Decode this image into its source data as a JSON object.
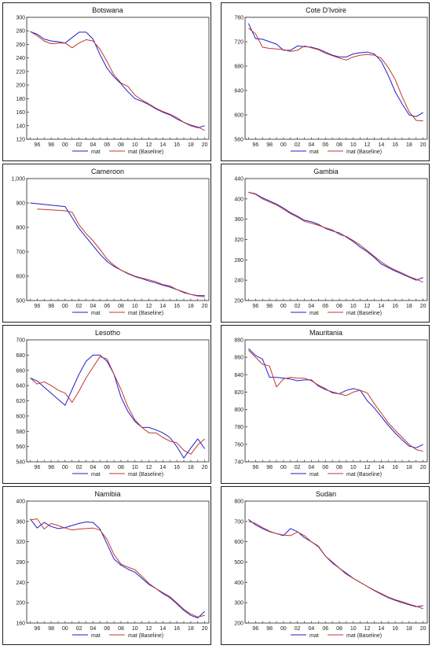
{
  "legend": {
    "series_a": "mat",
    "series_b": "mat (Baseline)"
  },
  "colors": {
    "mat": "#1f1fcc",
    "baseline": "#c0392b",
    "frame": "#222222"
  },
  "chart_data": [
    {
      "type": "line",
      "title": "Botswana",
      "x": [
        1995,
        1996,
        1997,
        1998,
        1999,
        2000,
        2001,
        2002,
        2003,
        2004,
        2005,
        2006,
        2007,
        2008,
        2009,
        2010,
        2011,
        2012,
        2013,
        2014,
        2015,
        2016,
        2017,
        2018,
        2019,
        2020
      ],
      "xticks": [
        "96",
        "98",
        "00",
        "02",
        "04",
        "06",
        "08",
        "10",
        "12",
        "14",
        "16",
        "18",
        "20"
      ],
      "ylim": [
        120,
        300
      ],
      "yticks": [
        "120",
        "140",
        "160",
        "180",
        "200",
        "220",
        "240",
        "260",
        "280",
        "300"
      ],
      "series": [
        {
          "name": "mat",
          "values": [
            279,
            275,
            268,
            265,
            264,
            262,
            270,
            278,
            278,
            268,
            245,
            225,
            212,
            202,
            190,
            180,
            176,
            171,
            165,
            160,
            156,
            150,
            145,
            140,
            137,
            140
          ]
        },
        {
          "name": "mat (Baseline)",
          "values": [
            279,
            273,
            265,
            261,
            262,
            262,
            255,
            262,
            267,
            265,
            253,
            235,
            215,
            203,
            198,
            185,
            178,
            172,
            166,
            161,
            157,
            152,
            145,
            141,
            138,
            133
          ]
        }
      ]
    },
    {
      "type": "line",
      "title": "Cote D'Ivoire",
      "x": [
        1995,
        1996,
        1997,
        1998,
        1999,
        2000,
        2001,
        2002,
        2003,
        2004,
        2005,
        2006,
        2007,
        2008,
        2009,
        2010,
        2011,
        2012,
        2013,
        2014,
        2015,
        2016,
        2017,
        2018,
        2019,
        2020
      ],
      "xticks": [
        "96",
        "98",
        "00",
        "02",
        "04",
        "06",
        "08",
        "10",
        "12",
        "14",
        "16",
        "18",
        "20"
      ],
      "ylim": [
        560,
        760
      ],
      "yticks": [
        "560",
        "600",
        "640",
        "680",
        "720",
        "760"
      ],
      "series": [
        {
          "name": "mat",
          "values": [
            750,
            725,
            724,
            720,
            716,
            706,
            706,
            713,
            712,
            711,
            708,
            703,
            698,
            695,
            695,
            700,
            702,
            703,
            700,
            688,
            665,
            638,
            618,
            600,
            597,
            604
          ]
        },
        {
          "name": "mat (Baseline)",
          "values": [
            742,
            733,
            711,
            709,
            708,
            707,
            704,
            706,
            713,
            710,
            707,
            701,
            697,
            693,
            690,
            695,
            698,
            699,
            698,
            693,
            678,
            658,
            630,
            605,
            591,
            590
          ]
        }
      ]
    },
    {
      "type": "line",
      "title": "Cameroon",
      "x": [
        1995,
        1996,
        1997,
        1998,
        1999,
        2000,
        2001,
        2002,
        2003,
        2004,
        2005,
        2006,
        2007,
        2008,
        2009,
        2010,
        2011,
        2012,
        2013,
        2014,
        2015,
        2016,
        2017,
        2018,
        2019,
        2020
      ],
      "xticks": [
        "96",
        "98",
        "00",
        "02",
        "04",
        "06",
        "08",
        "10",
        "12",
        "14",
        "16",
        "18",
        "20"
      ],
      "ylim": [
        500,
        1000
      ],
      "yticks": [
        "500",
        "600",
        "700",
        "800",
        "900",
        "1,000"
      ],
      "series": [
        {
          "name": "mat",
          "values": [
            900,
            null,
            null,
            null,
            null,
            885,
            840,
            795,
            760,
            725,
            690,
            660,
            640,
            625,
            610,
            598,
            590,
            580,
            572,
            563,
            555,
            545,
            535,
            525,
            520,
            520
          ]
        },
        {
          "name": "mat (Baseline)",
          "values": [
            null,
            875,
            null,
            null,
            null,
            868,
            862,
            810,
            775,
            745,
            710,
            670,
            645,
            625,
            612,
            600,
            592,
            585,
            577,
            565,
            560,
            545,
            532,
            525,
            518,
            515
          ]
        }
      ]
    },
    {
      "type": "line",
      "title": "Gambia",
      "x": [
        1995,
        1996,
        1997,
        1998,
        1999,
        2000,
        2001,
        2002,
        2003,
        2004,
        2005,
        2006,
        2007,
        2008,
        2009,
        2010,
        2011,
        2012,
        2013,
        2014,
        2015,
        2016,
        2017,
        2018,
        2019,
        2020
      ],
      "xticks": [
        "96",
        "98",
        "00",
        "02",
        "04",
        "06",
        "08",
        "10",
        "12",
        "14",
        "16",
        "18",
        "20"
      ],
      "ylim": [
        200,
        440
      ],
      "yticks": [
        "200",
        "240",
        "280",
        "320",
        "360",
        "400",
        "440"
      ],
      "series": [
        {
          "name": "mat",
          "values": [
            413,
            410,
            402,
            396,
            390,
            382,
            373,
            366,
            358,
            355,
            350,
            342,
            337,
            333,
            325,
            316,
            305,
            296,
            285,
            272,
            265,
            258,
            252,
            246,
            240,
            245
          ]
        },
        {
          "name": "mat (Baseline)",
          "values": [
            413,
            409,
            400,
            394,
            388,
            380,
            371,
            364,
            356,
            352,
            348,
            343,
            339,
            330,
            326,
            318,
            309,
            298,
            287,
            276,
            267,
            260,
            254,
            247,
            242,
            236
          ]
        }
      ]
    },
    {
      "type": "line",
      "title": "Lesotho",
      "x": [
        1995,
        1996,
        1997,
        1998,
        1999,
        2000,
        2001,
        2002,
        2003,
        2004,
        2005,
        2006,
        2007,
        2008,
        2009,
        2010,
        2011,
        2012,
        2013,
        2014,
        2015,
        2016,
        2017,
        2018,
        2019,
        2020
      ],
      "xticks": [
        "96",
        "98",
        "00",
        "02",
        "04",
        "06",
        "08",
        "10",
        "12",
        "14",
        "16",
        "18",
        "20"
      ],
      "ylim": [
        540,
        700
      ],
      "yticks": [
        "540",
        "560",
        "580",
        "600",
        "620",
        "640",
        "660",
        "680",
        "700"
      ],
      "series": [
        {
          "name": "mat",
          "values": [
            650,
            646,
            638,
            630,
            622,
            614,
            635,
            655,
            672,
            680,
            680,
            672,
            655,
            625,
            606,
            593,
            585,
            585,
            582,
            578,
            572,
            560,
            545,
            558,
            570,
            557
          ]
        },
        {
          "name": "mat (Baseline)",
          "values": [
            650,
            642,
            645,
            640,
            634,
            630,
            618,
            633,
            650,
            664,
            678,
            675,
            655,
            635,
            612,
            595,
            585,
            578,
            578,
            572,
            567,
            565,
            555,
            550,
            562,
            570
          ]
        }
      ]
    },
    {
      "type": "line",
      "title": "Mauritania",
      "x": [
        1995,
        1996,
        1997,
        1998,
        1999,
        2000,
        2001,
        2002,
        2003,
        2004,
        2005,
        2006,
        2007,
        2008,
        2009,
        2010,
        2011,
        2012,
        2013,
        2014,
        2015,
        2016,
        2017,
        2018,
        2019,
        2020
      ],
      "xticks": [
        "96",
        "98",
        "00",
        "02",
        "04",
        "06",
        "08",
        "10",
        "12",
        "14",
        "16",
        "18",
        "20"
      ],
      "ylim": [
        740,
        880
      ],
      "yticks": [
        "740",
        "760",
        "780",
        "800",
        "820",
        "840",
        "860",
        "880"
      ],
      "series": [
        {
          "name": "mat",
          "values": [
            870,
            862,
            858,
            837,
            837,
            836,
            835,
            833,
            834,
            834,
            827,
            823,
            820,
            818,
            822,
            824,
            822,
            810,
            802,
            792,
            782,
            773,
            765,
            758,
            756,
            760
          ]
        },
        {
          "name": "mat (Baseline)",
          "values": [
            868,
            860,
            852,
            850,
            826,
            835,
            837,
            836,
            836,
            833,
            828,
            824,
            819,
            818,
            816,
            820,
            822,
            819,
            807,
            796,
            785,
            776,
            768,
            760,
            754,
            752
          ]
        }
      ]
    },
    {
      "type": "line",
      "title": "Namibia",
      "x": [
        1995,
        1996,
        1997,
        1998,
        1999,
        2000,
        2001,
        2002,
        2003,
        2004,
        2005,
        2006,
        2007,
        2008,
        2009,
        2010,
        2011,
        2012,
        2013,
        2014,
        2015,
        2016,
        2017,
        2018,
        2019,
        2020
      ],
      "xticks": [
        "96",
        "98",
        "00",
        "02",
        "04",
        "06",
        "08",
        "10",
        "12",
        "14",
        "16",
        "18",
        "20"
      ],
      "ylim": [
        160,
        400
      ],
      "yticks": [
        "160",
        "200",
        "240",
        "280",
        "320",
        "360",
        "400"
      ],
      "series": [
        {
          "name": "mat",
          "values": [
            365,
            347,
            358,
            350,
            346,
            348,
            352,
            356,
            359,
            358,
            345,
            316,
            286,
            274,
            266,
            260,
            248,
            236,
            228,
            218,
            210,
            198,
            185,
            175,
            170,
            183
          ]
        },
        {
          "name": "mat (Baseline)",
          "values": [
            363,
            365,
            345,
            356,
            352,
            347,
            343,
            345,
            346,
            347,
            343,
            325,
            295,
            276,
            270,
            265,
            252,
            238,
            228,
            220,
            212,
            200,
            187,
            178,
            172,
            175
          ]
        }
      ]
    },
    {
      "type": "line",
      "title": "Sudan",
      "x": [
        1995,
        1996,
        1997,
        1998,
        1999,
        2000,
        2001,
        2002,
        2003,
        2004,
        2005,
        2006,
        2007,
        2008,
        2009,
        2010,
        2011,
        2012,
        2013,
        2014,
        2015,
        2016,
        2017,
        2018,
        2019,
        2020
      ],
      "xticks": [
        "96",
        "98",
        "00",
        "02",
        "04",
        "06",
        "08",
        "10",
        "12",
        "14",
        "16",
        "18",
        "20"
      ],
      "ylim": [
        200,
        800
      ],
      "yticks": [
        "200",
        "300",
        "400",
        "500",
        "600",
        "700",
        "800"
      ],
      "series": [
        {
          "name": "mat",
          "values": [
            710,
            683,
            665,
            650,
            640,
            630,
            665,
            650,
            620,
            600,
            578,
            530,
            500,
            470,
            445,
            420,
            400,
            380,
            360,
            342,
            325,
            312,
            300,
            290,
            280,
            285
          ]
        },
        {
          "name": "mat (Baseline)",
          "values": [
            700,
            690,
            670,
            652,
            640,
            633,
            630,
            648,
            630,
            600,
            575,
            530,
            495,
            470,
            440,
            420,
            400,
            380,
            362,
            345,
            328,
            315,
            305,
            293,
            283,
            270
          ]
        }
      ]
    }
  ]
}
